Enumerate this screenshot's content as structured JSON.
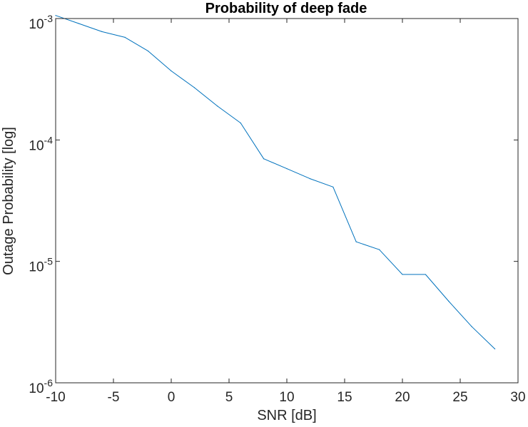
{
  "chart_data": {
    "type": "line",
    "title": "Probability of deep fade",
    "xlabel": "SNR [dB]",
    "ylabel": "Outage Probability [log]",
    "yscale": "log",
    "xlim": [
      -10,
      30
    ],
    "ylim": [
      1e-06,
      0.001
    ],
    "xticks": [
      -10,
      -5,
      0,
      5,
      10,
      15,
      20,
      25,
      30
    ],
    "xtick_labels": [
      "-10",
      "-5",
      "0",
      "5",
      "10",
      "15",
      "20",
      "25",
      "30"
    ],
    "yticks": [
      {
        "value": 1e-06,
        "base": "10",
        "exp": "-6"
      },
      {
        "value": 1e-05,
        "base": "10",
        "exp": "-5"
      },
      {
        "value": 0.0001,
        "base": "10",
        "exp": "-4"
      },
      {
        "value": 0.001,
        "base": "10",
        "exp": "-3"
      }
    ],
    "grid": false,
    "series": [
      {
        "name": "Outage probability",
        "color": "#0072bd",
        "x": [
          -10,
          -8,
          -6,
          -4,
          -2,
          0,
          2,
          4,
          6,
          8,
          10,
          12,
          14,
          16,
          18,
          20,
          22,
          24,
          26,
          28
        ],
        "y": [
          0.00106,
          0.00091,
          0.00078,
          0.0007,
          0.00054,
          0.00037,
          0.00027,
          0.00019,
          0.000138,
          7e-05,
          5.8e-05,
          4.8e-05,
          4.1e-05,
          1.45e-05,
          1.25e-05,
          7.8e-06,
          7.8e-06,
          4.7e-06,
          2.9e-06,
          1.9e-06
        ]
      }
    ]
  }
}
